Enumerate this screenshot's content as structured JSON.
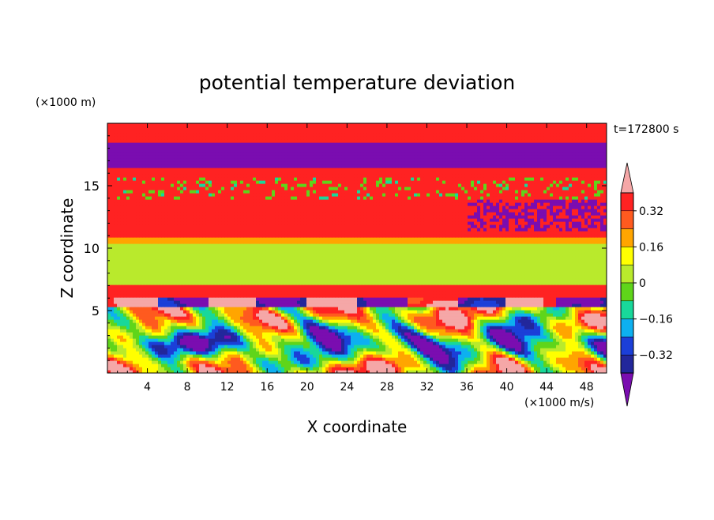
{
  "chart_data": {
    "type": "heatmap",
    "title": "potential temperature deviation",
    "time_label": "t=172800 s",
    "xlabel": "X coordinate",
    "ylabel": "Z coordinate",
    "x_unit": "(×1000 m/s)",
    "y_unit": "(×1000 m)",
    "xlim": [
      0,
      50
    ],
    "ylim": [
      0,
      20
    ],
    "x_ticks": [
      4,
      8,
      12,
      16,
      20,
      24,
      28,
      32,
      36,
      40,
      44,
      48
    ],
    "y_ticks": [
      5,
      10,
      15
    ],
    "colorbar": {
      "labels": [
        "0.32",
        "0.16",
        "0",
        "−0.16",
        "−0.32"
      ],
      "levels": [
        -0.4,
        -0.32,
        -0.24,
        -0.16,
        -0.08,
        0,
        0.08,
        0.16,
        0.24,
        0.32,
        0.4
      ],
      "colors": [
        "#7a0db0",
        "#22279b",
        "#1b3fd8",
        "#0db0f0",
        "#18d89a",
        "#5fd51a",
        "#b9ea2c",
        "#ffff00",
        "#ffa500",
        "#ff5a1f",
        "#ff2222",
        "#f5a7a7"
      ]
    },
    "bands": [
      {
        "z": [
          0,
          6.2
        ],
        "desc": "turbulent mixed field",
        "level": "mixed"
      },
      {
        "z": [
          6.2,
          7.0
        ],
        "level": 0.4
      },
      {
        "z": [
          7.0,
          10.5
        ],
        "level": 0.05
      },
      {
        "z": [
          10.5,
          11.0
        ],
        "level": 0.2
      },
      {
        "z": [
          11.0,
          11.8
        ],
        "level": 0.33
      },
      {
        "z": [
          11.8,
          12.6
        ],
        "level": 0.4
      },
      {
        "z": [
          12.6,
          13.8
        ],
        "level": 0.33
      },
      {
        "z": [
          13.8,
          16.5
        ],
        "level": 0.4
      },
      {
        "z": [
          16.5,
          18.5
        ],
        "level": -0.4
      },
      {
        "z": [
          18.5,
          20
        ],
        "level": 0.4
      }
    ]
  }
}
